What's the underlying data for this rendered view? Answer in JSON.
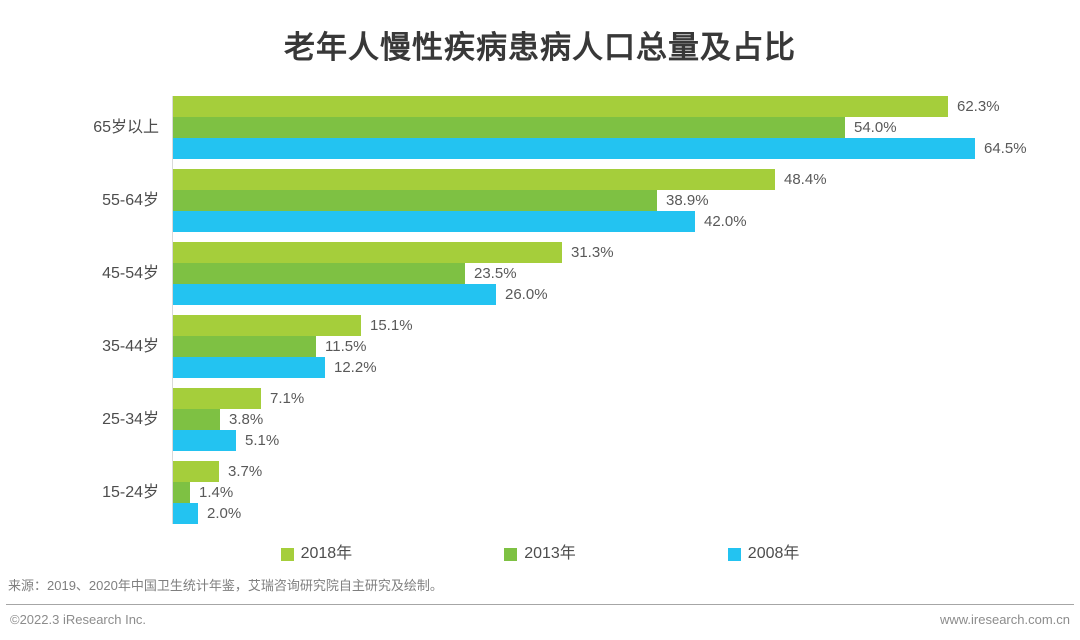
{
  "page": {
    "title": "老年人慢性疾病患病人口总量及占比",
    "source_note": "来源：2019、2020年中国卫生统计年鉴，艾瑞咨询研究院自主研究及绘制。",
    "footer_left": "©2022.3 iResearch Inc.",
    "footer_right": "www.iresearch.com.cn"
  },
  "chart_data": {
    "type": "bar",
    "orientation": "horizontal",
    "title": "老年人慢性疾病患病人口总量及占比",
    "categories": [
      "65岁以上",
      "55-64岁",
      "45-54岁",
      "35-44岁",
      "25-34岁",
      "15-24岁"
    ],
    "series": [
      {
        "name": "2018年",
        "color": "#a5ce3b",
        "values": [
          62.3,
          48.4,
          31.3,
          15.1,
          7.1,
          3.7
        ]
      },
      {
        "name": "2013年",
        "color": "#7ec143",
        "values": [
          54.0,
          38.9,
          23.5,
          11.5,
          3.8,
          1.4
        ]
      },
      {
        "name": "2008年",
        "color": "#23c3f1",
        "values": [
          64.5,
          42.0,
          26.0,
          12.2,
          5.1,
          2.0
        ]
      }
    ],
    "value_suffix": "%",
    "value_decimals": 1,
    "xlim": [
      0,
      69.8
    ],
    "grid": false,
    "legend_position": "bottom",
    "axis_line_color": "#d9d9d9",
    "label_color": "#595959"
  }
}
